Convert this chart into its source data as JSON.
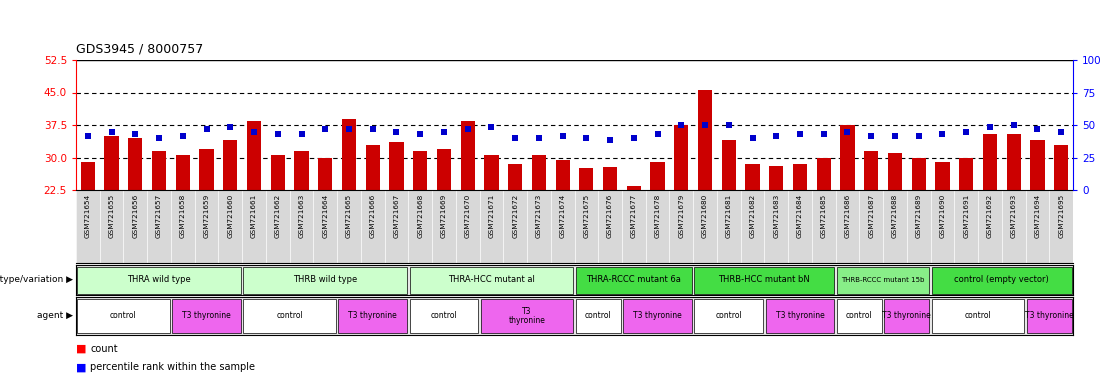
{
  "title": "GDS3945 / 8000757",
  "samples": [
    "GSM721654",
    "GSM721655",
    "GSM721656",
    "GSM721657",
    "GSM721658",
    "GSM721659",
    "GSM721660",
    "GSM721661",
    "GSM721662",
    "GSM721663",
    "GSM721664",
    "GSM721665",
    "GSM721666",
    "GSM721667",
    "GSM721668",
    "GSM721669",
    "GSM721670",
    "GSM721671",
    "GSM721672",
    "GSM721673",
    "GSM721674",
    "GSM721675",
    "GSM721676",
    "GSM721677",
    "GSM721678",
    "GSM721679",
    "GSM721680",
    "GSM721681",
    "GSM721682",
    "GSM721683",
    "GSM721684",
    "GSM721685",
    "GSM721686",
    "GSM721687",
    "GSM721688",
    "GSM721689",
    "GSM721690",
    "GSM721691",
    "GSM721692",
    "GSM721693",
    "GSM721694",
    "GSM721695"
  ],
  "counts": [
    29.0,
    35.0,
    34.5,
    31.5,
    30.5,
    32.0,
    34.0,
    38.5,
    30.5,
    31.5,
    30.0,
    39.0,
    33.0,
    33.5,
    31.5,
    32.0,
    38.5,
    30.5,
    28.5,
    30.5,
    29.5,
    27.5,
    27.8,
    23.5,
    29.0,
    37.5,
    45.5,
    34.0,
    28.5,
    28.0,
    28.5,
    30.0,
    37.5,
    31.5,
    31.0,
    30.0,
    29.0,
    30.0,
    35.5,
    35.5,
    34.0,
    33.0
  ],
  "percentiles": [
    35.0,
    36.0,
    35.5,
    34.5,
    35.0,
    36.5,
    37.0,
    36.0,
    35.5,
    35.5,
    36.5,
    36.5,
    36.5,
    36.0,
    35.5,
    36.0,
    36.5,
    37.0,
    34.5,
    34.5,
    35.0,
    34.5,
    34.0,
    34.5,
    35.5,
    37.5,
    37.5,
    37.5,
    34.5,
    35.0,
    35.5,
    35.5,
    36.0,
    35.0,
    35.0,
    35.0,
    35.5,
    36.0,
    37.0,
    37.5,
    36.5,
    36.0
  ],
  "ylim_left": [
    22.5,
    52.5
  ],
  "yticks_left": [
    22.5,
    30.0,
    37.5,
    45.0,
    52.5
  ],
  "ylim_right": [
    0,
    100
  ],
  "yticks_right": [
    0,
    25,
    50,
    75,
    100
  ],
  "bar_color": "#CC0000",
  "percentile_color": "#0000CC",
  "bar_width": 0.6,
  "xlabel_bg": "#d8d8d8",
  "genotype_groups": [
    {
      "label": "THRA wild type",
      "start": 0,
      "end": 7,
      "color": "#ccffcc"
    },
    {
      "label": "THRB wild type",
      "start": 7,
      "end": 14,
      "color": "#ccffcc"
    },
    {
      "label": "THRA-HCC mutant al",
      "start": 14,
      "end": 21,
      "color": "#ccffcc"
    },
    {
      "label": "THRA-RCCC mutant 6a",
      "start": 21,
      "end": 26,
      "color": "#44dd44"
    },
    {
      "label": "THRB-HCC mutant bN",
      "start": 26,
      "end": 32,
      "color": "#44dd44"
    },
    {
      "label": "THRB-RCCC mutant 15b",
      "start": 32,
      "end": 36,
      "color": "#88ee88"
    },
    {
      "label": "control (empty vector)",
      "start": 36,
      "end": 42,
      "color": "#44dd44"
    }
  ],
  "agent_groups": [
    {
      "label": "control",
      "start": 0,
      "end": 4,
      "color": "#ffffff"
    },
    {
      "label": "T3 thyronine",
      "start": 4,
      "end": 7,
      "color": "#ee66ee"
    },
    {
      "label": "control",
      "start": 7,
      "end": 11,
      "color": "#ffffff"
    },
    {
      "label": "T3 thyronine",
      "start": 11,
      "end": 14,
      "color": "#ee66ee"
    },
    {
      "label": "control",
      "start": 14,
      "end": 17,
      "color": "#ffffff"
    },
    {
      "label": "T3\nthyronine",
      "start": 17,
      "end": 21,
      "color": "#ee66ee"
    },
    {
      "label": "control",
      "start": 21,
      "end": 23,
      "color": "#ffffff"
    },
    {
      "label": "T3 thyronine",
      "start": 23,
      "end": 26,
      "color": "#ee66ee"
    },
    {
      "label": "control",
      "start": 26,
      "end": 29,
      "color": "#ffffff"
    },
    {
      "label": "T3 thyronine",
      "start": 29,
      "end": 32,
      "color": "#ee66ee"
    },
    {
      "label": "control",
      "start": 32,
      "end": 34,
      "color": "#ffffff"
    },
    {
      "label": "T3 thyronine",
      "start": 34,
      "end": 36,
      "color": "#ee66ee"
    },
    {
      "label": "control",
      "start": 36,
      "end": 40,
      "color": "#ffffff"
    },
    {
      "label": "T3 thyronine",
      "start": 40,
      "end": 42,
      "color": "#ee66ee"
    }
  ],
  "grid_lines": [
    30.0,
    37.5,
    45.0
  ],
  "background_color": "#ffffff",
  "genotype_label": "genotype/variation",
  "agent_label": "agent"
}
